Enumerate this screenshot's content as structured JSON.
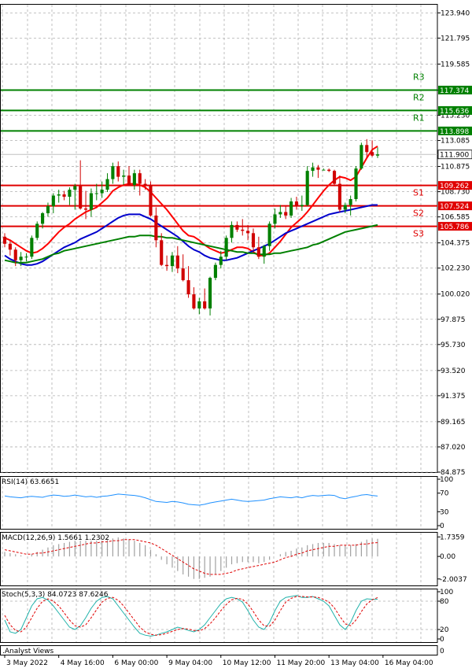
{
  "chart_data": {
    "type": "candlestick",
    "main": {
      "y_ticks": [
        "123.940",
        "121.795",
        "119.585",
        "117.374",
        "115.230",
        "113.085",
        "110.875",
        "108.730",
        "106.585",
        "104.375",
        "102.230",
        "100.020",
        "97.875",
        "95.730",
        "93.520",
        "91.375",
        "89.165",
        "87.020",
        "84.875"
      ],
      "ylim": [
        84.875,
        124.7
      ],
      "levels": [
        {
          "label": "R3",
          "value": 117.374,
          "tag": "117.374",
          "color": "#008000"
        },
        {
          "label": "R2",
          "value": 115.636,
          "tag": "115.636",
          "color": "#008000"
        },
        {
          "label": "R1",
          "value": 113.898,
          "tag": "113.898",
          "color": "#008000"
        },
        {
          "label": "S1",
          "value": 109.262,
          "tag": "109.262",
          "color": "#e00000"
        },
        {
          "label": "S2",
          "value": 107.524,
          "tag": "107.524",
          "color": "#e00000"
        },
        {
          "label": "S3",
          "value": 105.786,
          "tag": "105.786",
          "color": "#e00000"
        }
      ],
      "current_price": {
        "value": 111.9,
        "tag": "111.900"
      },
      "candles": [
        [
          104.9,
          105.2,
          104.0,
          104.3
        ],
        [
          104.3,
          104.6,
          103.3,
          103.8
        ],
        [
          103.8,
          104.0,
          102.4,
          102.9
        ],
        [
          102.9,
          103.6,
          102.4,
          103.2
        ],
        [
          103.2,
          103.5,
          102.8,
          103.2
        ],
        [
          103.2,
          105.0,
          103.0,
          104.8
        ],
        [
          104.8,
          106.2,
          104.6,
          106.0
        ],
        [
          106.0,
          107.0,
          105.6,
          106.9
        ],
        [
          106.9,
          107.8,
          106.6,
          107.5
        ],
        [
          107.5,
          108.6,
          106.9,
          108.4
        ],
        [
          108.4,
          108.9,
          107.8,
          108.5
        ],
        [
          108.5,
          108.8,
          108.0,
          108.3
        ],
        [
          108.3,
          109.1,
          107.6,
          108.9
        ],
        [
          108.9,
          109.4,
          107.2,
          109.2
        ],
        [
          109.2,
          111.4,
          107.2,
          107.3
        ],
        [
          107.3,
          108.8,
          106.4,
          107.2
        ],
        [
          107.2,
          109.0,
          106.6,
          108.6
        ],
        [
          108.6,
          109.4,
          108.0,
          108.6
        ],
        [
          108.6,
          109.6,
          108.2,
          108.9
        ],
        [
          108.9,
          110.3,
          108.7,
          109.8
        ],
        [
          109.8,
          111.2,
          109.4,
          110.9
        ],
        [
          110.9,
          111.3,
          109.6,
          110.0
        ],
        [
          110.0,
          110.6,
          109.3,
          110.1
        ],
        [
          110.1,
          110.9,
          109.6,
          109.3
        ],
        [
          109.3,
          110.6,
          108.9,
          110.3
        ],
        [
          110.3,
          110.6,
          108.4,
          109.4
        ],
        [
          109.4,
          109.8,
          108.9,
          109.3
        ],
        [
          109.3,
          109.6,
          106.6,
          106.7
        ],
        [
          106.7,
          107.4,
          104.0,
          104.6
        ],
        [
          104.6,
          105.2,
          102.4,
          102.5
        ],
        [
          102.5,
          103.3,
          102.0,
          102.4
        ],
        [
          102.4,
          103.6,
          101.9,
          103.3
        ],
        [
          103.3,
          104.1,
          101.8,
          102.2
        ],
        [
          102.2,
          103.4,
          101.1,
          101.2
        ],
        [
          101.2,
          102.4,
          99.7,
          100.0
        ],
        [
          100.0,
          100.6,
          98.7,
          98.8
        ],
        [
          98.8,
          99.7,
          98.3,
          99.4
        ],
        [
          99.4,
          100.5,
          98.7,
          98.8
        ],
        [
          98.8,
          101.5,
          98.2,
          101.4
        ],
        [
          101.4,
          102.7,
          101.2,
          102.5
        ],
        [
          102.5,
          103.7,
          102.2,
          103.2
        ],
        [
          103.2,
          105.0,
          102.9,
          104.8
        ],
        [
          104.8,
          106.2,
          104.4,
          105.9
        ],
        [
          105.9,
          106.2,
          105.3,
          105.5
        ],
        [
          105.5,
          106.4,
          105.0,
          105.4
        ],
        [
          105.4,
          105.9,
          104.6,
          105.2
        ],
        [
          105.2,
          105.6,
          103.7,
          104.0
        ],
        [
          104.0,
          104.9,
          103.0,
          103.2
        ],
        [
          103.2,
          104.2,
          102.6,
          104.1
        ],
        [
          104.1,
          106.2,
          103.7,
          106.0
        ],
        [
          106.0,
          107.3,
          105.6,
          106.8
        ],
        [
          106.8,
          107.6,
          106.5,
          107.0
        ],
        [
          107.0,
          107.5,
          106.4,
          106.7
        ],
        [
          106.7,
          108.2,
          106.5,
          107.9
        ],
        [
          107.9,
          108.3,
          107.2,
          107.5
        ],
        [
          107.5,
          108.4,
          107.1,
          107.6
        ],
        [
          107.6,
          110.9,
          107.5,
          110.5
        ],
        [
          110.5,
          111.2,
          110.0,
          110.8
        ],
        [
          110.8,
          111.0,
          109.9,
          110.6
        ],
        [
          110.6,
          110.7,
          110.6,
          110.6
        ],
        [
          110.6,
          110.7,
          110.4,
          110.5
        ],
        [
          110.5,
          110.6,
          109.2,
          109.4
        ],
        [
          109.4,
          110.1,
          107.0,
          107.2
        ],
        [
          107.2,
          107.8,
          106.9,
          107.6
        ],
        [
          107.6,
          108.4,
          106.7,
          108.1
        ],
        [
          108.1,
          110.9,
          107.9,
          110.7
        ],
        [
          110.7,
          112.9,
          110.6,
          112.7
        ],
        [
          112.7,
          113.2,
          111.6,
          112.1
        ],
        [
          112.1,
          113.1,
          111.7,
          111.8
        ],
        [
          111.8,
          112.5,
          111.6,
          111.9
        ]
      ],
      "series": [
        {
          "color": "#ff0000",
          "values": [
            104.8,
            104.6,
            104.3,
            104.0,
            103.7,
            103.5,
            103.6,
            103.9,
            104.3,
            104.8,
            105.3,
            105.7,
            106.0,
            106.4,
            106.7,
            107.0,
            107.2,
            107.4,
            107.8,
            108.2,
            108.8,
            109.1,
            109.3,
            109.4,
            109.4,
            109.3,
            109.1,
            108.7,
            108.2,
            107.7,
            107.2,
            106.6,
            106.0,
            105.4,
            105.0,
            104.9,
            104.6,
            104.2,
            103.9,
            103.7,
            103.5,
            103.6,
            103.8,
            104.0,
            104.0,
            103.9,
            103.6,
            103.3,
            103.3,
            103.5,
            104.0,
            104.5,
            105.1,
            105.7,
            106.1,
            106.5,
            107.0,
            107.6,
            108.2,
            108.8,
            109.3,
            109.7,
            110.0,
            109.9,
            109.7,
            110.0,
            110.8,
            111.6,
            112.3,
            112.6
          ]
        },
        {
          "color": "#0000cc",
          "values": [
            103.3,
            103.0,
            102.8,
            102.6,
            102.5,
            102.5,
            102.6,
            102.8,
            103.1,
            103.4,
            103.7,
            104.0,
            104.2,
            104.4,
            104.7,
            104.9,
            105.1,
            105.3,
            105.6,
            105.9,
            106.2,
            106.5,
            106.7,
            106.8,
            106.8,
            106.8,
            106.6,
            106.4,
            106.1,
            105.8,
            105.5,
            105.2,
            104.9,
            104.5,
            104.1,
            103.8,
            103.6,
            103.3,
            103.1,
            103.0,
            102.9,
            102.9,
            103.0,
            103.1,
            103.3,
            103.5,
            103.7,
            103.9,
            104.1,
            104.3,
            104.6,
            104.9,
            105.2,
            105.4,
            105.6,
            105.8,
            106.0,
            106.2,
            106.4,
            106.6,
            106.8,
            106.9,
            107.0,
            107.1,
            107.2,
            107.3,
            107.4,
            107.5,
            107.6,
            107.6
          ]
        },
        {
          "color": "#008000",
          "values": [
            102.9,
            102.8,
            102.7,
            102.7,
            102.7,
            102.8,
            102.9,
            103.0,
            103.2,
            103.4,
            103.5,
            103.7,
            103.8,
            103.9,
            104.0,
            104.1,
            104.2,
            104.3,
            104.4,
            104.5,
            104.6,
            104.7,
            104.8,
            104.9,
            104.9,
            105.0,
            105.0,
            105.0,
            104.9,
            104.9,
            104.8,
            104.8,
            104.7,
            104.6,
            104.5,
            104.4,
            104.3,
            104.2,
            104.1,
            104.0,
            103.9,
            103.8,
            103.7,
            103.6,
            103.6,
            103.5,
            103.5,
            103.4,
            103.4,
            103.4,
            103.5,
            103.5,
            103.6,
            103.7,
            103.8,
            103.9,
            104.0,
            104.2,
            104.3,
            104.5,
            104.7,
            104.9,
            105.1,
            105.3,
            105.4,
            105.5,
            105.6,
            105.7,
            105.8,
            105.9
          ]
        }
      ]
    },
    "rsi": {
      "label": "RSI(14) 63.6651",
      "y_ticks": [
        "100",
        "70",
        "30",
        "0"
      ],
      "values": [
        64,
        62,
        61,
        60,
        62,
        63,
        62,
        61,
        64,
        66,
        65,
        63,
        64,
        66,
        64,
        62,
        63,
        61,
        63,
        64,
        66,
        68,
        67,
        66,
        65,
        63,
        60,
        56,
        52,
        51,
        50,
        52,
        51,
        49,
        46,
        45,
        44,
        46,
        49,
        51,
        53,
        55,
        57,
        55,
        53,
        52,
        53,
        54,
        55,
        58,
        60,
        62,
        61,
        60,
        62,
        60,
        63,
        65,
        64,
        65,
        66,
        65,
        60,
        58,
        61,
        63,
        66,
        67,
        65,
        63.7
      ],
      "ylim": [
        0,
        100
      ]
    },
    "macd": {
      "label": "MACD(12,26,9) 1.5661 1.2302",
      "y_ticks": [
        "1.7359",
        "0.00",
        "-2.0037"
      ],
      "hist": [
        0.4,
        0.3,
        0.2,
        0.1,
        0.0,
        0.2,
        0.4,
        0.6,
        0.8,
        1.0,
        1.1,
        1.2,
        1.3,
        1.4,
        1.4,
        1.4,
        1.4,
        1.4,
        1.4,
        1.5,
        1.6,
        1.7,
        1.6,
        1.5,
        1.4,
        1.2,
        1.0,
        0.6,
        0.2,
        -0.3,
        -0.7,
        -1.0,
        -1.3,
        -1.6,
        -1.8,
        -2.0,
        -2.0,
        -1.9,
        -1.8,
        -1.6,
        -1.3,
        -1.0,
        -0.7,
        -0.6,
        -0.5,
        -0.5,
        -0.5,
        -0.6,
        -0.5,
        -0.3,
        0.0,
        0.2,
        0.4,
        0.5,
        0.7,
        0.8,
        1.0,
        1.1,
        1.2,
        1.2,
        1.2,
        1.1,
        1.0,
        1.0,
        1.0,
        1.1,
        1.3,
        1.5,
        1.6,
        1.57
      ],
      "signal": [
        0.6,
        0.5,
        0.4,
        0.3,
        0.2,
        0.2,
        0.3,
        0.3,
        0.4,
        0.5,
        0.6,
        0.7,
        0.8,
        0.9,
        1.0,
        1.1,
        1.2,
        1.2,
        1.3,
        1.3,
        1.4,
        1.4,
        1.5,
        1.5,
        1.5,
        1.4,
        1.3,
        1.2,
        1.0,
        0.7,
        0.4,
        0.1,
        -0.2,
        -0.5,
        -0.8,
        -1.1,
        -1.3,
        -1.5,
        -1.6,
        -1.6,
        -1.6,
        -1.5,
        -1.4,
        -1.2,
        -1.1,
        -1.0,
        -0.9,
        -0.8,
        -0.7,
        -0.6,
        -0.5,
        -0.3,
        -0.1,
        0.0,
        0.2,
        0.3,
        0.5,
        0.6,
        0.7,
        0.8,
        0.9,
        0.9,
        1.0,
        1.0,
        1.0,
        1.0,
        1.1,
        1.1,
        1.2,
        1.23
      ],
      "ylim": [
        -2.3,
        1.9
      ]
    },
    "stoch": {
      "label": "Stoch(5,3,3) 84.0723 87.6246",
      "y_ticks": [
        "100",
        "80",
        "20",
        "0"
      ],
      "main": [
        40,
        15,
        12,
        20,
        45,
        70,
        85,
        88,
        82,
        70,
        55,
        40,
        25,
        20,
        28,
        45,
        65,
        80,
        88,
        90,
        85,
        70,
        55,
        40,
        25,
        12,
        8,
        6,
        8,
        12,
        15,
        20,
        25,
        22,
        18,
        15,
        20,
        30,
        45,
        60,
        75,
        85,
        88,
        85,
        78,
        60,
        40,
        25,
        20,
        35,
        60,
        80,
        88,
        90,
        92,
        88,
        88,
        90,
        85,
        80,
        70,
        50,
        30,
        20,
        35,
        60,
        80,
        85,
        84,
        84.07
      ],
      "signal": [
        50,
        30,
        18,
        15,
        25,
        45,
        65,
        80,
        85,
        80,
        70,
        55,
        40,
        28,
        25,
        30,
        45,
        62,
        78,
        86,
        88,
        82,
        70,
        55,
        40,
        25,
        15,
        10,
        8,
        9,
        12,
        16,
        20,
        22,
        21,
        18,
        17,
        22,
        32,
        45,
        60,
        73,
        83,
        86,
        84,
        74,
        58,
        40,
        28,
        27,
        40,
        60,
        78,
        86,
        90,
        90,
        89,
        89,
        88,
        84,
        78,
        66,
        48,
        32,
        28,
        40,
        58,
        74,
        83,
        87.62
      ],
      "ylim": [
        0,
        100
      ]
    },
    "x_ticks": [
      {
        "label": "3 May 2022",
        "index": 0
      },
      {
        "label": "4 May 16:00",
        "index": 10
      },
      {
        "label": "6 May 00:00",
        "index": 20
      },
      {
        "label": "9 May 04:00",
        "index": 30
      },
      {
        "label": "10 May 12:00",
        "index": 40
      },
      {
        "label": "11 May 20:00",
        "index": 50
      },
      {
        "label": "13 May 04:00",
        "index": 60
      },
      {
        "label": "16 May 04:00",
        "index": 70
      }
    ],
    "footer_label": "Analyst Views",
    "footer_tick": "0"
  }
}
